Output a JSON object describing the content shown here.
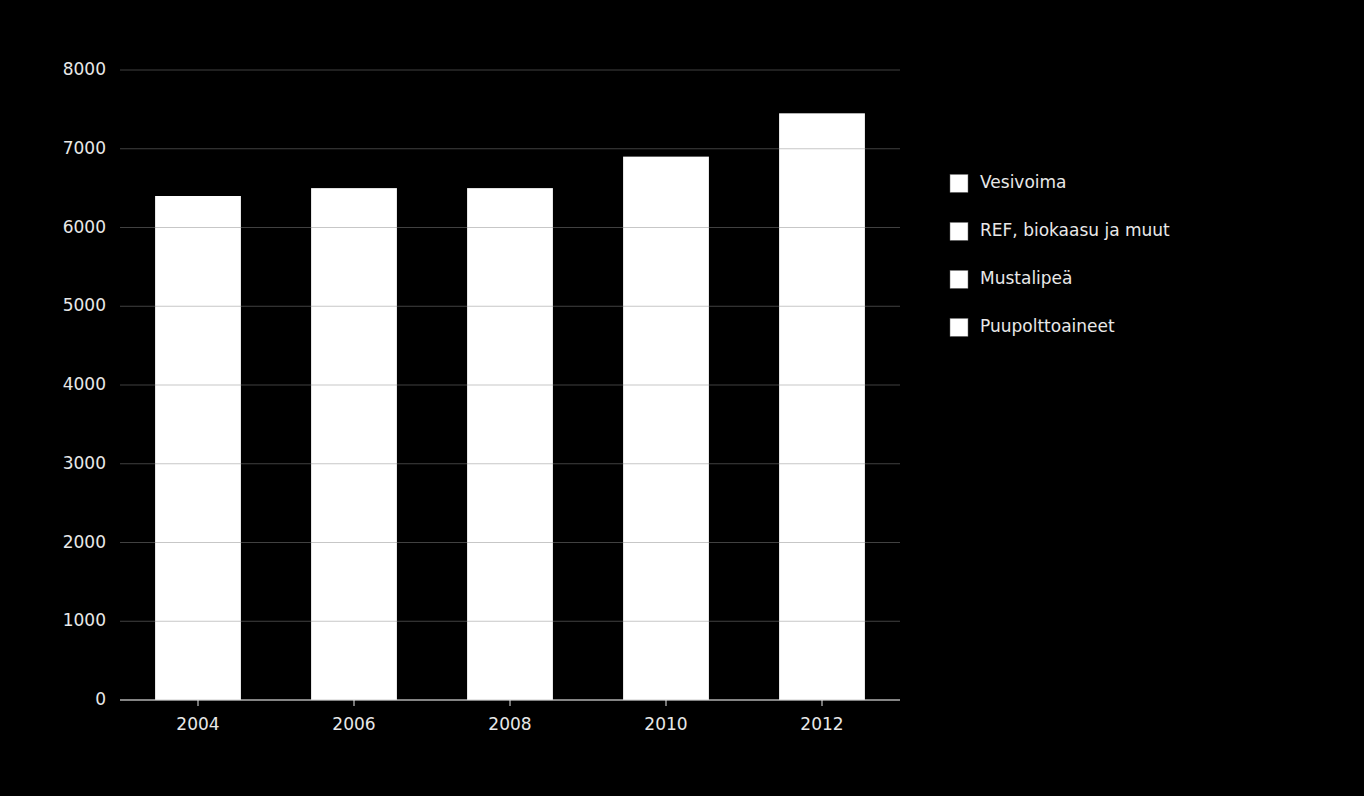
{
  "chart_data": {
    "type": "bar",
    "categories": [
      "2004",
      "2006",
      "2008",
      "2010",
      "2012"
    ],
    "values": [
      6400,
      6500,
      6500,
      6900,
      7450
    ],
    "color": "#ffffff",
    "ylim": [
      0,
      8000
    ],
    "yticks": [
      0,
      1000,
      2000,
      3000,
      4000,
      5000,
      6000,
      7000,
      8000
    ],
    "grid": true,
    "legend": "right",
    "legend_entries": [
      {
        "name": "Vesivoima",
        "color": "#ffffff"
      },
      {
        "name": "REF, biokaasu ja muut",
        "color": "#ffffff"
      },
      {
        "name": "Mustalipeä",
        "color": "#ffffff"
      },
      {
        "name": "Puupolttoaineet",
        "color": "#ffffff"
      }
    ]
  }
}
